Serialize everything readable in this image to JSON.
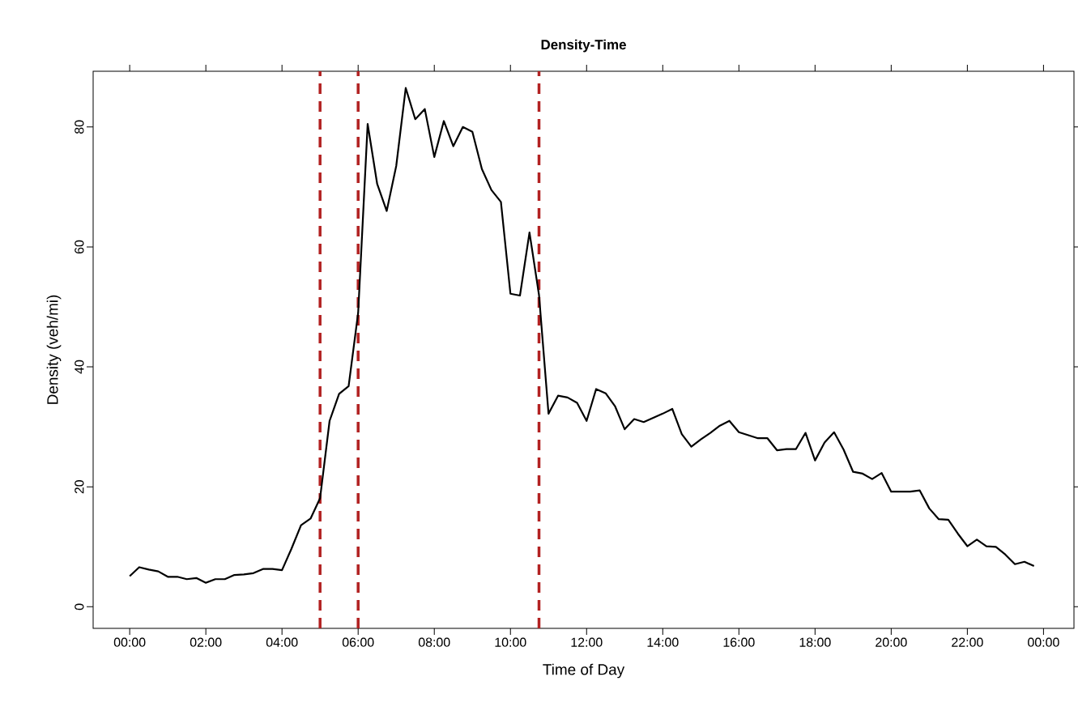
{
  "chart_data": {
    "type": "line",
    "title": "Density-Time",
    "xlabel": "Time of Day",
    "ylabel": "Density (veh/mi)",
    "x": [
      0,
      0.25,
      0.5,
      0.75,
      1,
      1.25,
      1.5,
      1.75,
      2,
      2.25,
      2.5,
      2.75,
      3,
      3.25,
      3.5,
      3.75,
      4,
      4.25,
      4.5,
      4.75,
      5,
      5.25,
      5.5,
      5.75,
      6,
      6.25,
      6.5,
      6.75,
      7,
      7.25,
      7.5,
      7.75,
      8,
      8.25,
      8.5,
      8.75,
      9,
      9.25,
      9.5,
      9.75,
      10,
      10.25,
      10.5,
      10.75,
      11,
      11.25,
      11.5,
      11.75,
      12,
      12.25,
      12.5,
      12.75,
      13,
      13.25,
      13.5,
      13.75,
      14,
      14.25,
      14.5,
      14.75,
      15,
      15.25,
      15.5,
      15.75,
      16,
      16.25,
      16.5,
      16.75,
      17,
      17.25,
      17.5,
      17.75,
      18,
      18.25,
      18.5,
      18.75,
      19,
      19.25,
      19.5,
      19.75,
      20,
      20.25,
      20.5,
      20.75,
      21,
      21.25,
      21.5,
      21.75,
      22,
      22.25,
      22.5,
      22.75,
      23,
      23.25,
      23.5,
      23.75
    ],
    "values": [
      5.1,
      6.6,
      6.2,
      5.9,
      5.0,
      5.0,
      4.6,
      4.8,
      4.0,
      4.6,
      4.6,
      5.3,
      5.4,
      5.6,
      6.3,
      6.3,
      6.1,
      9.7,
      13.6,
      14.7,
      18.1,
      31.0,
      35.5,
      36.8,
      49.0,
      80.5,
      70.5,
      66.0,
      73.5,
      86.5,
      81.3,
      83.0,
      75.0,
      81.0,
      76.8,
      80.0,
      79.2,
      73.0,
      69.5,
      67.5,
      52.2,
      51.9,
      62.4,
      52.0,
      32.2,
      35.2,
      34.9,
      34.0,
      31.0,
      36.3,
      35.6,
      33.4,
      29.6,
      31.3,
      30.8,
      31.5,
      32.2,
      33.0,
      28.8,
      26.7,
      27.9,
      29.0,
      30.2,
      31.0,
      29.1,
      28.6,
      28.1,
      28.1,
      26.1,
      26.3,
      26.3,
      29.0,
      24.4,
      27.4,
      29.1,
      26.2,
      22.5,
      22.2,
      21.3,
      22.3,
      19.2,
      19.2,
      19.2,
      19.4,
      16.4,
      14.6,
      14.5,
      12.2,
      10.1,
      11.2,
      10.1,
      10.0,
      8.7,
      7.1,
      7.5,
      6.8
    ],
    "color": "#000000",
    "line_style": "solid",
    "marker": "none",
    "xlim": [
      -0.96,
      24.8
    ],
    "ylim": [
      -3.6,
      89.3
    ],
    "xticks": [
      {
        "value": 0,
        "label": "00:00"
      },
      {
        "value": 2,
        "label": "02:00"
      },
      {
        "value": 4,
        "label": "04:00"
      },
      {
        "value": 6,
        "label": "06:00"
      },
      {
        "value": 8,
        "label": "08:00"
      },
      {
        "value": 10,
        "label": "10:00"
      },
      {
        "value": 12,
        "label": "12:00"
      },
      {
        "value": 14,
        "label": "14:00"
      },
      {
        "value": 16,
        "label": "16:00"
      },
      {
        "value": 18,
        "label": "18:00"
      },
      {
        "value": 20,
        "label": "20:00"
      },
      {
        "value": 22,
        "label": "22:00"
      },
      {
        "value": 24,
        "label": "00:00"
      }
    ],
    "yticks": [
      0,
      20,
      40,
      60,
      80
    ],
    "ref_lines": [
      {
        "axis": "x",
        "value": 5,
        "color": "#b22222",
        "line_style": "dashed"
      },
      {
        "axis": "x",
        "value": 6,
        "color": "#b22222",
        "line_style": "dashed"
      },
      {
        "axis": "x",
        "value": 10.75,
        "color": "#b22222",
        "line_style": "dashed"
      }
    ]
  }
}
